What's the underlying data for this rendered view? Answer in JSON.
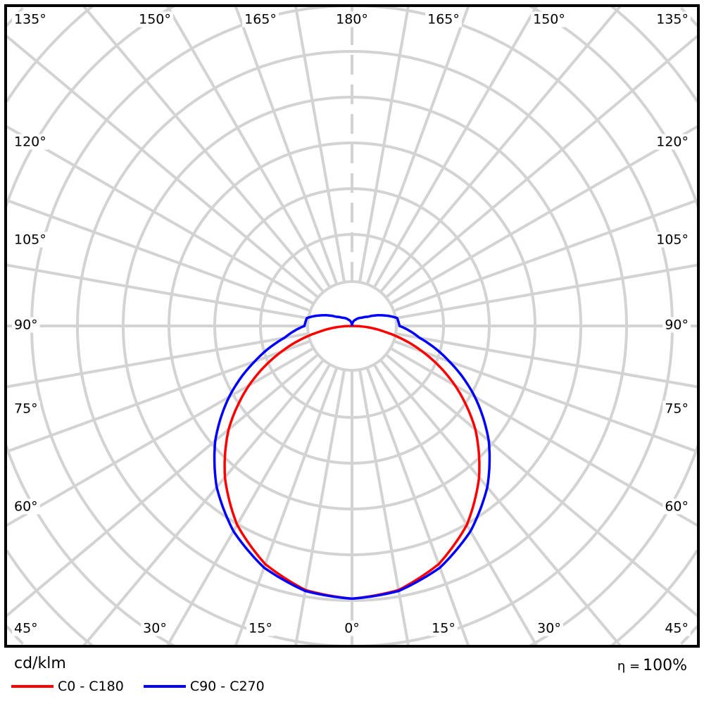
{
  "chart_data": {
    "type": "polar-line",
    "unit_label": "cd/klm",
    "efficiency_symbol": "η =",
    "efficiency_value": "100%",
    "ring_step": 50,
    "ring_count": 8,
    "grid": true,
    "spoke_step_deg": 10,
    "angle_labels": {
      "left": [
        "135°",
        "120°",
        "105°",
        "90°",
        "75°",
        "60°",
        "45°"
      ],
      "top": [
        "150°",
        "165°",
        "180°",
        "165°",
        "150°"
      ],
      "right": [
        "135°",
        "120°",
        "105°",
        "90°",
        "75°",
        "60°",
        "45°"
      ],
      "bottom": [
        "30°",
        "15°",
        "0°",
        "15°",
        "30°"
      ]
    },
    "gamma": [
      0,
      10,
      20,
      30,
      40,
      50,
      60,
      70,
      80,
      90,
      100,
      110,
      120,
      130,
      140,
      150,
      160,
      170,
      180
    ],
    "series": [
      {
        "name": "C0 - C180",
        "color": "#ff0000",
        "values": [
          298,
          293,
          277,
          251,
          216,
          176,
          130,
          82,
          36,
          0,
          0,
          0,
          0,
          0,
          0,
          0,
          0,
          0,
          0
        ]
      },
      {
        "name": "C90 - C270",
        "color": "#0000ff",
        "values": [
          298,
          294,
          281,
          259,
          230,
          195,
          155,
          113,
          75,
          52,
          50,
          34,
          20,
          14,
          11,
          8,
          6,
          3,
          0
        ]
      }
    ],
    "legend_position": "bottom-left"
  }
}
